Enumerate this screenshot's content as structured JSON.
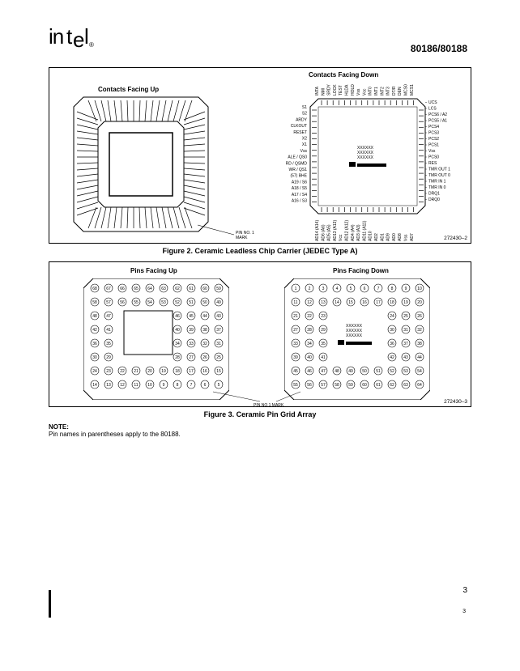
{
  "header": {
    "logo_text": "intel",
    "reg": "®",
    "partnum": "80186/80188"
  },
  "figure2": {
    "label_left": "Contacts Facing Up",
    "label_right": "Contacts Facing Down",
    "pin1_label": "PIN NO. 1 MARK",
    "id": "272430–2",
    "caption": "Figure 2. Ceramic Leadless Chip Carrier (JEDEC Type A)",
    "pins_right_side": [
      "UCS",
      "LCS",
      "PCS6 / A2",
      "PCS5 / A1",
      "PCS4",
      "PCS3",
      "PCS2",
      "PCS1",
      "Vss",
      "PCS0",
      "RES",
      "TMR OUT 1",
      "TMR OUT 0",
      "TMR IN 1",
      "TMR IN 0",
      "DRQ1",
      "DRQ0"
    ],
    "pins_left_side": [
      "S1",
      "S2",
      "ARDY",
      "CLKOUT",
      "RESET",
      "X2",
      "X1",
      "Vss",
      "ALE / QS0",
      "RD / QSMD",
      "WR / QS1",
      "(57) BHE",
      "A19 / S6",
      "A18 / S5",
      "A17 / S4",
      "A16 / S3"
    ],
    "pins_top": [
      "INTA",
      "NMI",
      "SRDY",
      "LOCK",
      "TEST",
      "HLDA",
      "HOLD",
      "Vss",
      "Vcc",
      "INT0",
      "INT1",
      "INT2",
      "INT3",
      "DT/R",
      "DEN",
      "MCS0",
      "MCS1"
    ],
    "pins_bottom": [
      "AD14 (A14)",
      "AD6 (A6)",
      "AD5 (A5)",
      "AD13 (A13)",
      "Vcc",
      "AD12 (A12)",
      "AD4 (A4)",
      "AD3 (A3)",
      "AD11 (A11)",
      "AD10",
      "AD2",
      "AD1",
      "AD9",
      "AD0",
      "AD8",
      "Vss",
      "AD7"
    ],
    "center_marks": "XXXXXX"
  },
  "figure3": {
    "label_left": "Pins Facing Up",
    "label_right": "Pins Facing Down",
    "pin1_label": "PIN NO.1 MARK",
    "id": "272430–3",
    "caption": "Figure 3. Ceramic Pin Grid Array",
    "center_marks": "XXXXXX"
  },
  "note": {
    "heading": "NOTE:",
    "body": "Pin names in parentheses apply to the 80188."
  },
  "page": {
    "num": "3",
    "num2": "3"
  }
}
